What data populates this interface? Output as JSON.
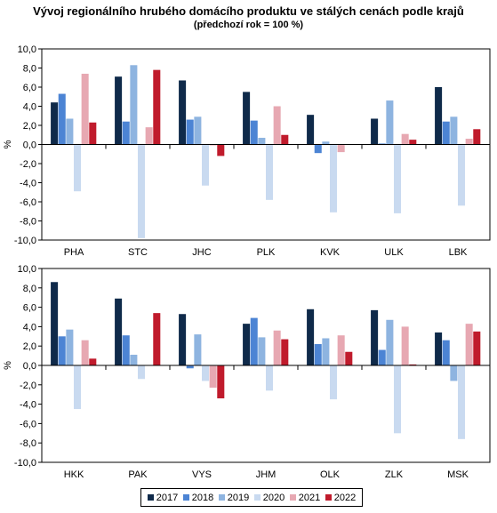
{
  "chart_data": {
    "type": "bar",
    "title": "Vývoj regionálního hrubého domácího produktu ve stálých cenách podle krajů",
    "subtitle": "(předchozí rok = 100 %)",
    "ylabel": "%",
    "ylim": [
      -10,
      10
    ],
    "yticks": [
      "10,0",
      "8,0",
      "6,0",
      "4,0",
      "2,0",
      "0,0",
      "-2,0",
      "-4,0",
      "-6,0",
      "-8,0",
      "-10,0"
    ],
    "grid": false,
    "legend_position": "bottom",
    "series": [
      {
        "name": "2017",
        "color": "#0f2a4a"
      },
      {
        "name": "2018",
        "color": "#4c84d4"
      },
      {
        "name": "2019",
        "color": "#8eb4e0"
      },
      {
        "name": "2020",
        "color": "#c9daf0"
      },
      {
        "name": "2021",
        "color": "#e7a8b2"
      },
      {
        "name": "2022",
        "color": "#c01b2c"
      }
    ],
    "panels": [
      {
        "categories": [
          "PHA",
          "STC",
          "JHC",
          "PLK",
          "KVK",
          "ULK",
          "LBK"
        ],
        "values": [
          [
            4.4,
            5.3,
            2.7,
            -4.9,
            7.4,
            2.3
          ],
          [
            7.1,
            2.4,
            8.3,
            -9.8,
            1.8,
            7.8
          ],
          [
            6.7,
            2.6,
            2.9,
            -4.3,
            -0.1,
            -1.2
          ],
          [
            5.5,
            2.5,
            0.7,
            -5.8,
            4.0,
            1.0
          ],
          [
            3.1,
            -0.9,
            0.3,
            -7.1,
            -0.8,
            0.0
          ],
          [
            2.7,
            0.1,
            4.6,
            -7.2,
            1.1,
            0.5
          ],
          [
            6.0,
            2.4,
            2.9,
            -6.4,
            0.6,
            1.6
          ]
        ]
      },
      {
        "categories": [
          "HKK",
          "PAK",
          "VYS",
          "JHM",
          "OLK",
          "ZLK",
          "MSK"
        ],
        "values": [
          [
            8.6,
            3.0,
            3.7,
            -4.5,
            2.6,
            0.7
          ],
          [
            6.9,
            3.1,
            1.1,
            -1.4,
            0.0,
            5.4
          ],
          [
            5.3,
            -0.3,
            3.2,
            -1.6,
            -2.3,
            -3.4
          ],
          [
            4.3,
            4.9,
            2.9,
            -2.6,
            3.6,
            2.7
          ],
          [
            5.8,
            2.2,
            2.8,
            -3.5,
            3.1,
            1.4
          ],
          [
            5.7,
            1.6,
            4.7,
            -7.0,
            4.0,
            0.1
          ],
          [
            3.4,
            2.6,
            -1.6,
            -7.6,
            4.3,
            3.5
          ]
        ]
      }
    ]
  }
}
